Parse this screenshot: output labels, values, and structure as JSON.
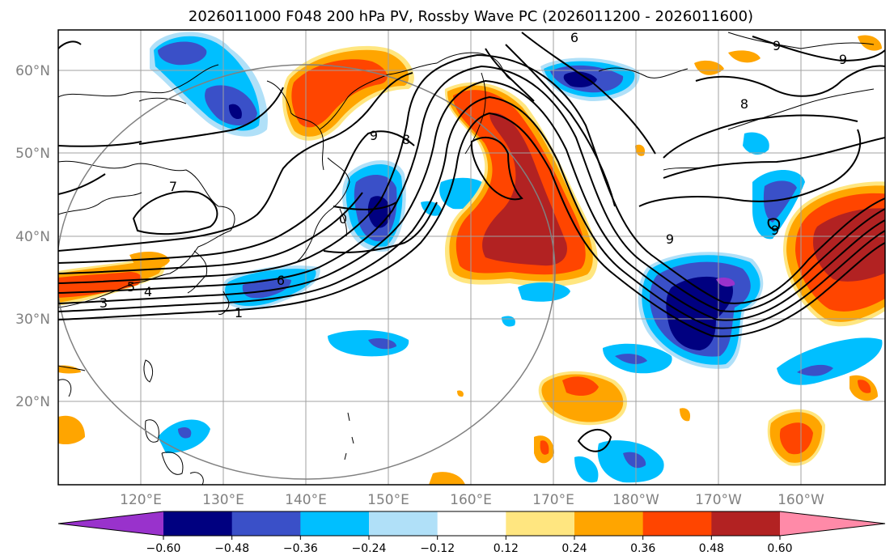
{
  "title": "2026011000 F048 200 hPa PV, Rossby Wave PC (2026011200 - 2026011600)",
  "lat_labels": [
    "60°N",
    "50°N",
    "40°N",
    "30°N",
    "20°N"
  ],
  "lon_labels": [
    "120°E",
    "130°E",
    "140°E",
    "150°E",
    "160°E",
    "170°E",
    "180°W",
    "170°W",
    "160°W"
  ],
  "colorbar": {
    "ticks": [
      "−0.60",
      "−0.48",
      "−0.36",
      "−0.24",
      "−0.12",
      "0.12",
      "0.24",
      "0.36",
      "0.48",
      "0.60"
    ],
    "colors": [
      "#9932cc",
      "#000080",
      "#3a50c8",
      "#00bfff",
      "#b0e0f8",
      "#ffffff",
      "#ffe680",
      "#ffa500",
      "#ff4500",
      "#b22222",
      "#ff8aa8"
    ]
  },
  "contour_labels": [
    "9",
    "8",
    "6",
    "7",
    "0",
    "5",
    "4",
    "3",
    "6",
    "1",
    "9",
    "8",
    "9",
    "9",
    "9"
  ],
  "colors": {
    "pos_weak": "#ffe680",
    "pos_mid": "#ffa500",
    "pos_strong": "#ff4500",
    "pos_max": "#b22222",
    "neg_weak": "#b0e0f8",
    "neg_mid": "#00bfff",
    "neg_strong": "#3a50c8",
    "neg_max": "#000080",
    "neg_extreme": "#9932cc"
  }
}
